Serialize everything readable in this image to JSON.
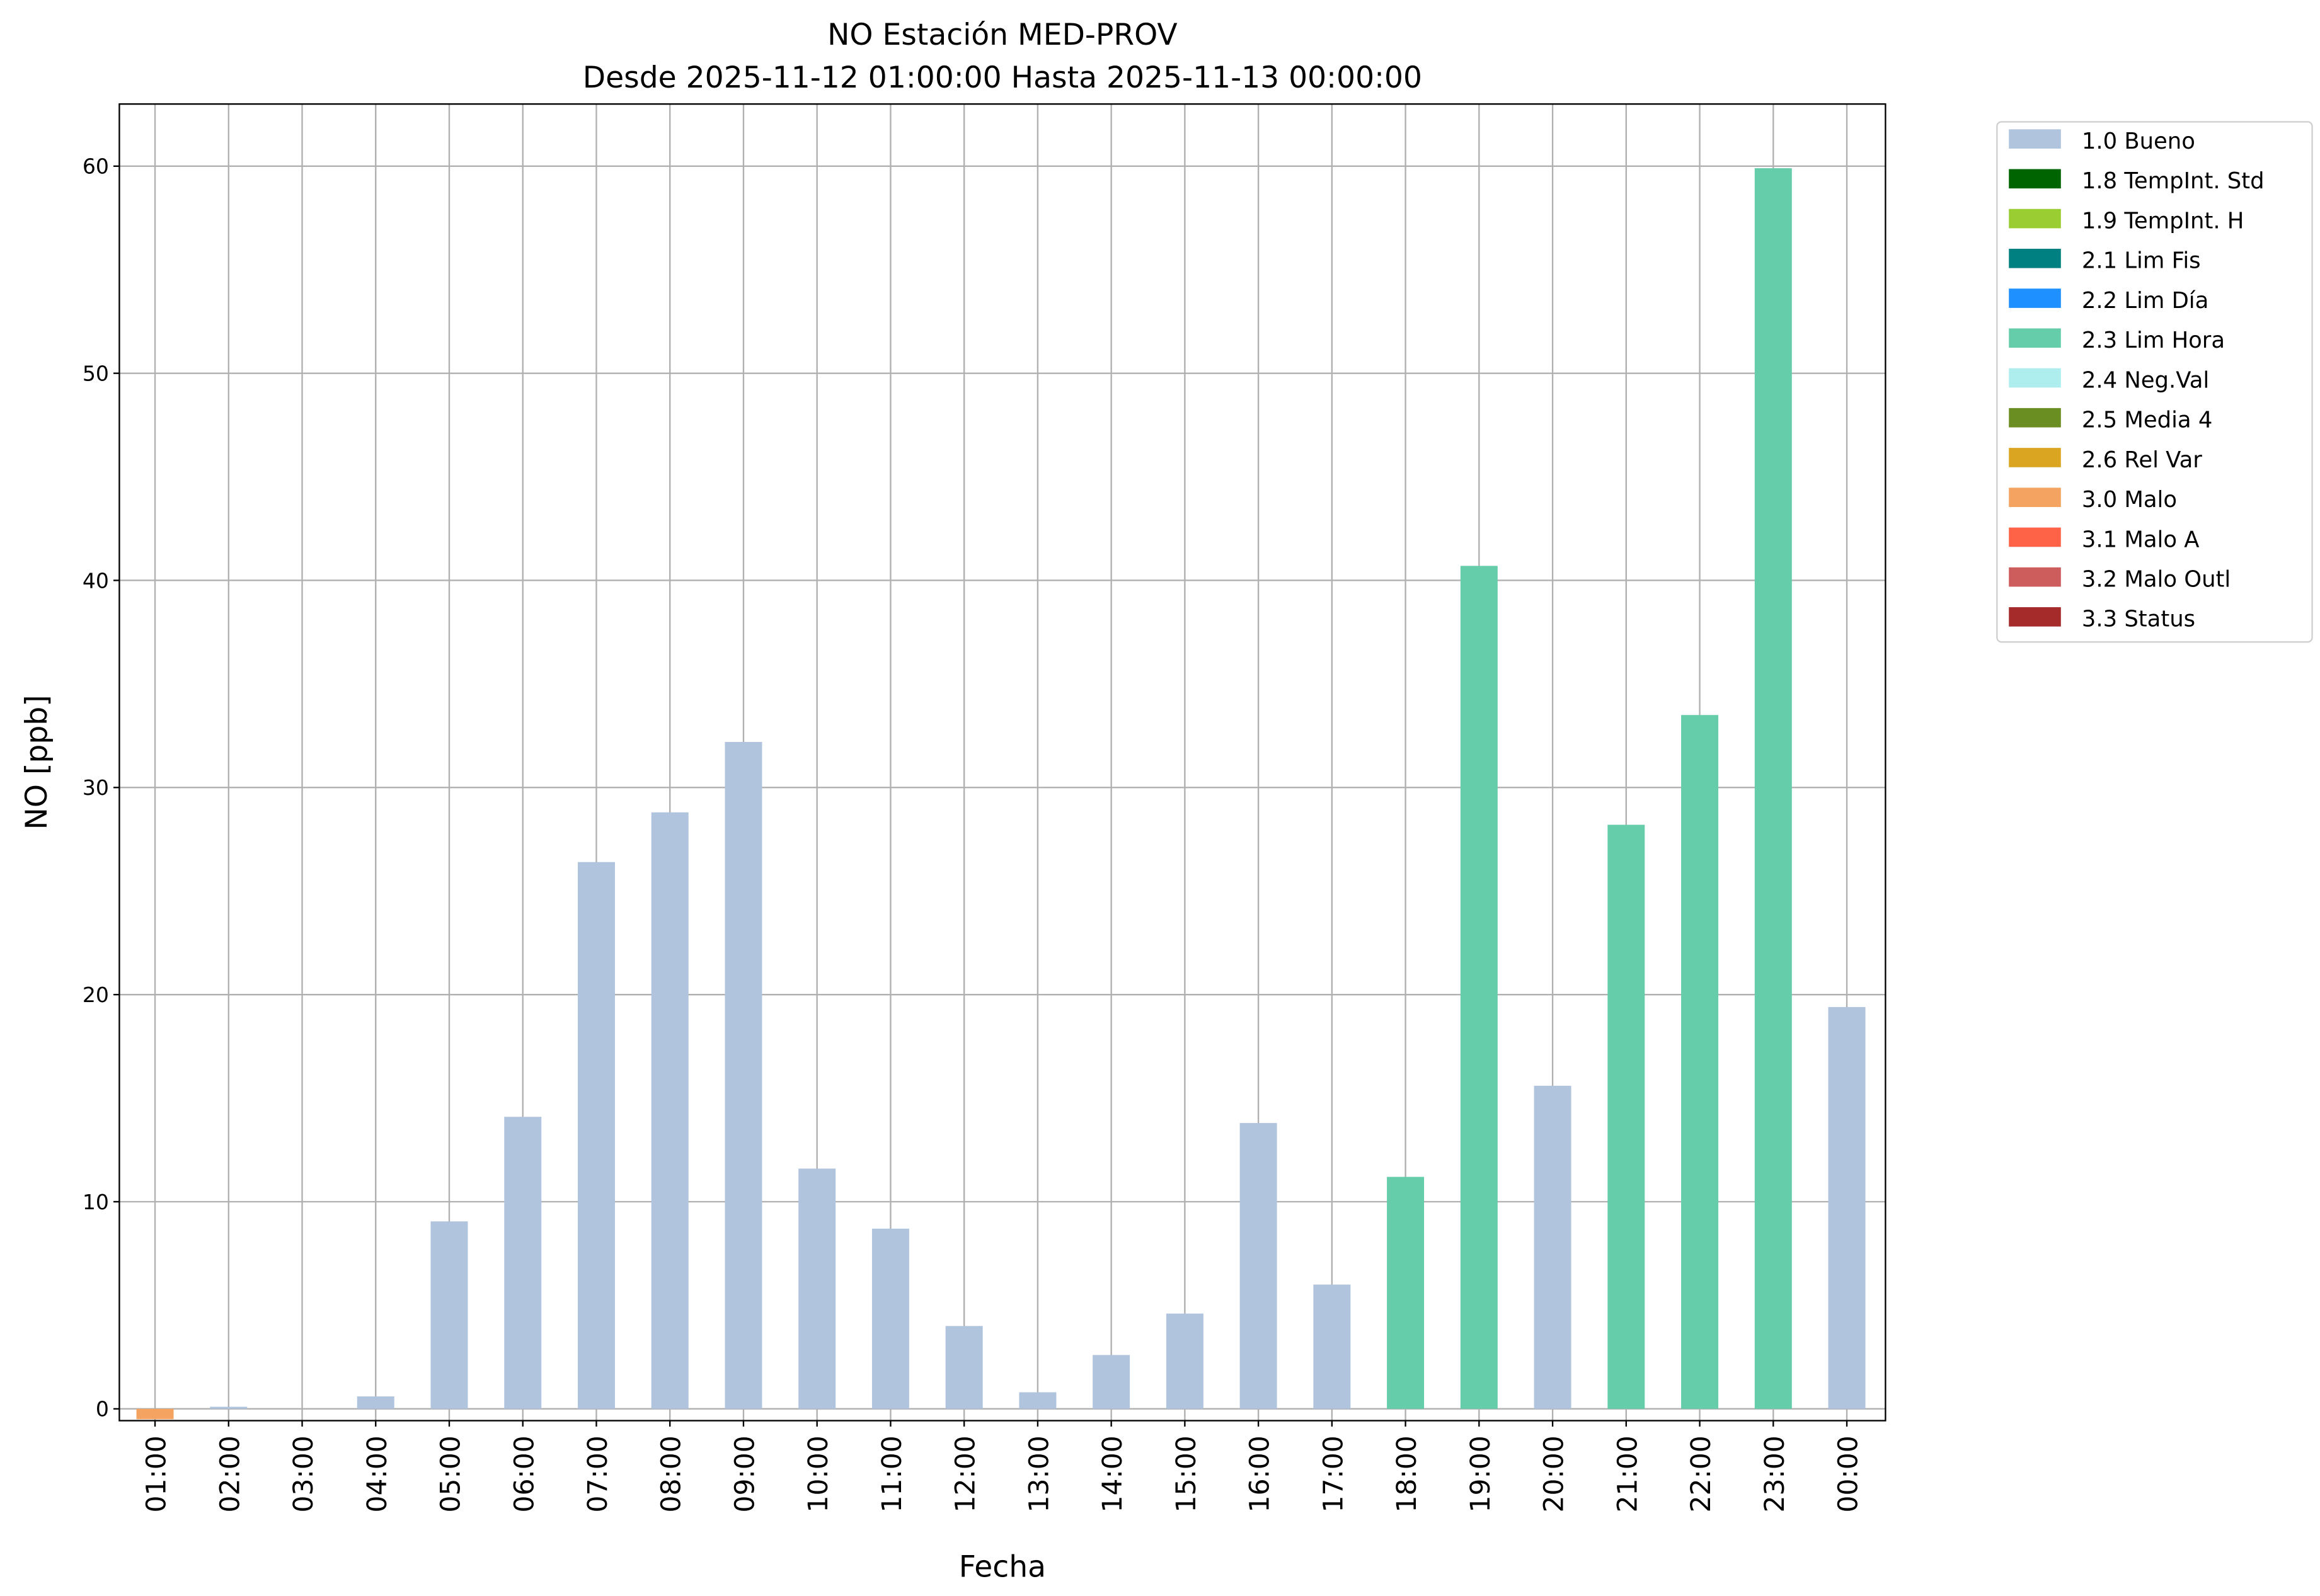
{
  "chart_data": {
    "type": "bar",
    "title": "NO Estación MED-PROV",
    "subtitle": "Desde 2025-11-12 01:00:00 Hasta 2025-11-13 00:00:00",
    "xlabel": "Fecha",
    "ylabel": "NO [ppb]",
    "ylim": [
      -0.57,
      63.0
    ],
    "yticks": [
      0,
      10,
      20,
      30,
      40,
      50,
      60
    ],
    "grid": true,
    "legend_position": "outside-top-right",
    "categories": [
      "01:00",
      "02:00",
      "03:00",
      "04:00",
      "05:00",
      "06:00",
      "07:00",
      "08:00",
      "09:00",
      "10:00",
      "11:00",
      "12:00",
      "13:00",
      "14:00",
      "15:00",
      "16:00",
      "17:00",
      "18:00",
      "19:00",
      "20:00",
      "21:00",
      "22:00",
      "23:00",
      "00:00"
    ],
    "values": [
      -0.5,
      0.1,
      0,
      0.6,
      9.05,
      14.1,
      26.4,
      28.8,
      32.2,
      11.6,
      8.7,
      4.0,
      0.8,
      2.6,
      4.6,
      13.8,
      6.0,
      11.2,
      40.7,
      15.6,
      28.2,
      33.5,
      59.9,
      19.4
    ],
    "flags": [
      "3.0 Malo",
      "1.0 Bueno",
      "1.0 Bueno",
      "1.0 Bueno",
      "1.0 Bueno",
      "1.0 Bueno",
      "1.0 Bueno",
      "1.0 Bueno",
      "1.0 Bueno",
      "1.0 Bueno",
      "1.0 Bueno",
      "1.0 Bueno",
      "1.0 Bueno",
      "1.0 Bueno",
      "1.0 Bueno",
      "1.0 Bueno",
      "1.0 Bueno",
      "2.3 Lim Hora",
      "2.3 Lim Hora",
      "1.0 Bueno",
      "2.3 Lim Hora",
      "2.3 Lim Hora",
      "2.3 Lim Hora",
      "1.0 Bueno"
    ],
    "legend": [
      {
        "name": "1.0 Bueno",
        "color": "#b0c4de"
      },
      {
        "name": "1.8 TempInt. Std",
        "color": "#006400"
      },
      {
        "name": "1.9 TempInt. H",
        "color": "#9acd32"
      },
      {
        "name": "2.1 Lim Fis",
        "color": "#008080"
      },
      {
        "name": "2.2 Lim Día",
        "color": "#1e90ff"
      },
      {
        "name": "2.3 Lim Hora",
        "color": "#66cdaa"
      },
      {
        "name": "2.4 Neg.Val",
        "color": "#afeeee"
      },
      {
        "name": "2.5 Media 4",
        "color": "#6b8e23"
      },
      {
        "name": "2.6 Rel Var",
        "color": "#daa520"
      },
      {
        "name": "3.0 Malo",
        "color": "#f4a460"
      },
      {
        "name": "3.1 Malo A",
        "color": "#ff6347"
      },
      {
        "name": "3.2 Malo Outl",
        "color": "#cd5c5c"
      },
      {
        "name": "3.3 Status",
        "color": "#a52a2a"
      }
    ]
  }
}
